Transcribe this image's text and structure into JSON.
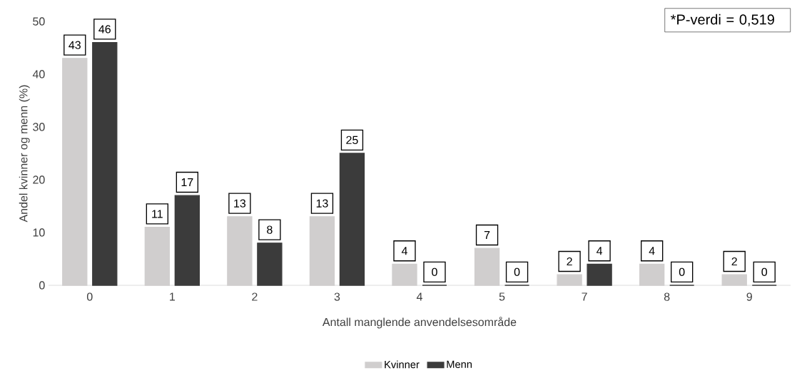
{
  "chart_data": {
    "type": "bar",
    "xlabel": "Antall manglende anvendelsesområde",
    "ylabel": "Andel kvinner og menn (%)",
    "categories": [
      "0",
      "1",
      "2",
      "3",
      "4",
      "5",
      "7",
      "8",
      "9"
    ],
    "series": [
      {
        "name": "Kvinner",
        "color": "#d0cece",
        "values": [
          43,
          11,
          13,
          13,
          4,
          7,
          2,
          4,
          2
        ]
      },
      {
        "name": "Menn",
        "color": "#3b3b3b",
        "values": [
          46,
          17,
          8,
          25,
          0,
          0,
          4,
          0,
          0
        ]
      }
    ],
    "ylim": [
      0,
      50
    ],
    "yticks": [
      0,
      10,
      20,
      30,
      40,
      50
    ],
    "grid": false,
    "legend": "bottom",
    "data_labels": true,
    "annotations": [
      "*P-verdi = 0,519"
    ]
  }
}
